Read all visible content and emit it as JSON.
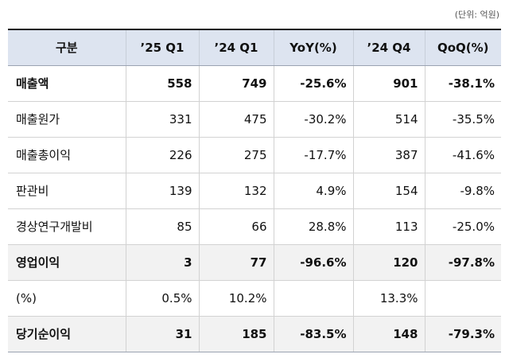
{
  "unit_note": "(단위: 억원)",
  "headers": [
    "구분",
    "’25 Q1",
    "’24 Q1",
    "YoY(%)",
    "’24 Q4",
    "QoQ(%)"
  ],
  "rows": [
    {
      "label": "매출액",
      "q1_25": "558",
      "q1_24": "749",
      "yoy": "-25.6%",
      "q4_24": "901",
      "qoq": "-38.1%"
    },
    {
      "label": "매출원가",
      "q1_25": "331",
      "q1_24": "475",
      "yoy": "-30.2%",
      "q4_24": "514",
      "qoq": "-35.5%"
    },
    {
      "label": "매출총이익",
      "q1_25": "226",
      "q1_24": "275",
      "yoy": "-17.7%",
      "q4_24": "387",
      "qoq": "-41.6%"
    },
    {
      "label": "판관비",
      "q1_25": "139",
      "q1_24": "132",
      "yoy": "4.9%",
      "q4_24": "154",
      "qoq": "-9.8%"
    },
    {
      "label": "경상연구개발비",
      "q1_25": "85",
      "q1_24": "66",
      "yoy": "28.8%",
      "q4_24": "113",
      "qoq": "-25.0%"
    },
    {
      "label": "영업이익",
      "q1_25": "3",
      "q1_24": "77",
      "yoy": "-96.6%",
      "q4_24": "120",
      "qoq": "-97.8%"
    },
    {
      "label": "(%)",
      "q1_25": "0.5%",
      "q1_24": "10.2%",
      "yoy": "",
      "q4_24": "13.3%",
      "qoq": ""
    },
    {
      "label": "당기순이익",
      "q1_25": "31",
      "q1_24": "185",
      "yoy": "-83.5%",
      "q4_24": "148",
      "qoq": "-79.3%"
    }
  ]
}
